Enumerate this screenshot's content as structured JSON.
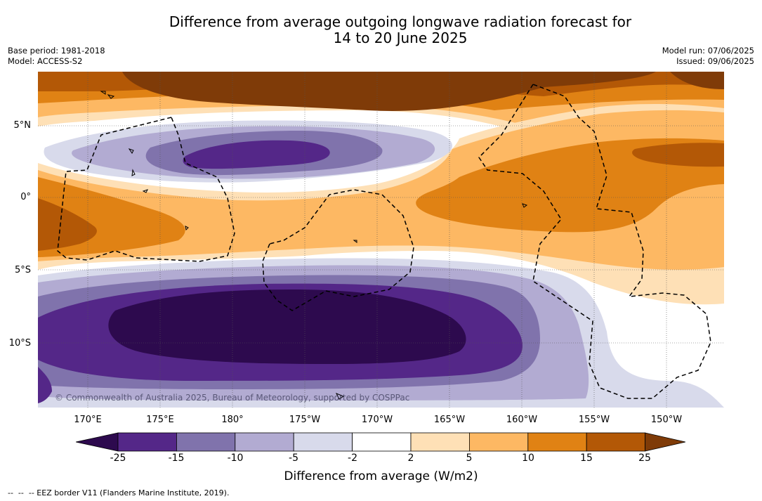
{
  "title": {
    "line1": "Difference from average outgoing longwave radiation forecast for",
    "line2": "14 to 20 June 2025"
  },
  "meta": {
    "base_period": "Base period: 1981-2018",
    "model": "Model: ACCESS-S2",
    "model_run": "Model run: 07/06/2025",
    "issued": "Issued: 09/06/2025"
  },
  "map": {
    "latitude_labels": [
      "5°N",
      "0°",
      "5°S",
      "10°S"
    ],
    "longitude_labels": [
      "170°E",
      "175°E",
      "180°",
      "175°W",
      "170°W",
      "165°W",
      "160°W",
      "155°W",
      "150°W"
    ],
    "credit": "© Commonwealth of Australia 2025, Bureau of Meteorology, supported by COSPPac"
  },
  "colorbar": {
    "ticks": [
      "-25",
      "-15",
      "-10",
      "-5",
      "-2",
      "2",
      "5",
      "10",
      "15",
      "25"
    ],
    "colors": [
      "#2d0a4e",
      "#542788",
      "#8073ac",
      "#b2abd2",
      "#d8daeb",
      "#ffffff",
      "#fee0b6",
      "#fdb863",
      "#e08214",
      "#b35806",
      "#7f3b08"
    ],
    "label": "Difference from average (W/m2)"
  },
  "footnote": "--  --  -- EEZ border V11 (Flanders Marine Institute, 2019)."
}
